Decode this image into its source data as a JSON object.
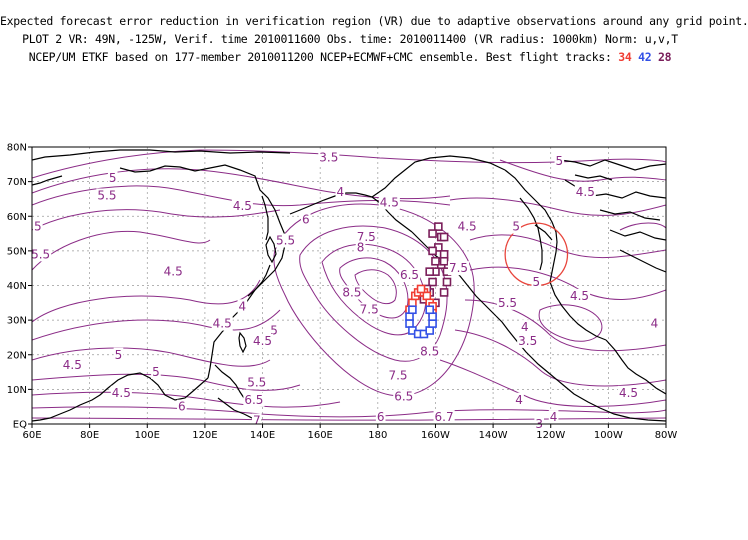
{
  "title": {
    "line1": "Expected forecast error reduction in verification region (VR) due to adaptive observations around any grid point.",
    "line2": "PLOT 2 VR: 49N, -125W, Verif. time 2010011600 Obs. time: 2010011400 (VR radius: 1000km) Norm: u,v,T",
    "line3_prefix": "NCEP/UM ETKF based on 177-member 2010011200 NCEP+ECMWF+CMC ensemble. Best flight tracks:",
    "track1": "34",
    "track2": "42",
    "track3": "28"
  },
  "colors": {
    "contour": "#8b2c87",
    "coast": "#000000",
    "vr_circle": "#e8453c",
    "track_red": "#f03c32",
    "track_blue": "#3250e6",
    "track_purple": "#7a1e5a"
  },
  "axes": {
    "lat_ticks": [
      "80N",
      "70N",
      "60N",
      "50N",
      "40N",
      "30N",
      "20N",
      "10N",
      "EQ"
    ],
    "lon_ticks": [
      "60E",
      "80E",
      "100E",
      "120E",
      "140E",
      "160E",
      "180",
      "160W",
      "140W",
      "120W",
      "100W",
      "80W"
    ]
  },
  "contour_labels": [
    {
      "text": "3.5",
      "lon": 163,
      "lat": 77
    },
    {
      "text": "5.5",
      "lon": 86,
      "lat": 66
    },
    {
      "text": "5",
      "lon": 88,
      "lat": 71
    },
    {
      "text": "4",
      "lon": 167,
      "lat": 67
    },
    {
      "text": "4.5",
      "lon": 184,
      "lat": 64
    },
    {
      "text": "4.5",
      "lon": 133,
      "lat": 63
    },
    {
      "text": "6",
      "lon": 155,
      "lat": 59
    },
    {
      "text": "5.5",
      "lon": 148,
      "lat": 53
    },
    {
      "text": "7.5",
      "lon": 176,
      "lat": 54
    },
    {
      "text": "8",
      "lon": 174,
      "lat": 51
    },
    {
      "text": "4.5",
      "lon": 211,
      "lat": 57
    },
    {
      "text": "5",
      "lon": 228,
      "lat": 57
    },
    {
      "text": "4.5",
      "lon": 252,
      "lat": 67
    },
    {
      "text": "5",
      "lon": 243,
      "lat": 76
    },
    {
      "text": "5",
      "lon": 62,
      "lat": 57
    },
    {
      "text": "5.5",
      "lon": 63,
      "lat": 49
    },
    {
      "text": "4.5",
      "lon": 109,
      "lat": 44
    },
    {
      "text": "8.5",
      "lon": 171,
      "lat": 38
    },
    {
      "text": "6.5",
      "lon": 191,
      "lat": 43
    },
    {
      "text": "7.5",
      "lon": 208,
      "lat": 45
    },
    {
      "text": "4",
      "lon": 133,
      "lat": 34
    },
    {
      "text": "4.5",
      "lon": 126,
      "lat": 29
    },
    {
      "text": "5",
      "lon": 144,
      "lat": 27
    },
    {
      "text": "4.5",
      "lon": 140,
      "lat": 24
    },
    {
      "text": "7.5",
      "lon": 177,
      "lat": 33
    },
    {
      "text": "5",
      "lon": 235,
      "lat": 41
    },
    {
      "text": "4.5",
      "lon": 250,
      "lat": 37
    },
    {
      "text": "5.5",
      "lon": 225,
      "lat": 35
    },
    {
      "text": "4",
      "lon": 231,
      "lat": 28
    },
    {
      "text": "3.5",
      "lon": 232,
      "lat": 24
    },
    {
      "text": "4",
      "lon": 276,
      "lat": 29
    },
    {
      "text": "5",
      "lon": 90,
      "lat": 20
    },
    {
      "text": "4.5",
      "lon": 74,
      "lat": 17
    },
    {
      "text": "5",
      "lon": 103,
      "lat": 15
    },
    {
      "text": "4.5",
      "lon": 91,
      "lat": 9
    },
    {
      "text": "6",
      "lon": 112,
      "lat": 5
    },
    {
      "text": "5.5",
      "lon": 138,
      "lat": 12
    },
    {
      "text": "6.5",
      "lon": 137,
      "lat": 7
    },
    {
      "text": "7",
      "lon": 138,
      "lat": 1
    },
    {
      "text": "8.5",
      "lon": 198,
      "lat": 21
    },
    {
      "text": "7.5",
      "lon": 187,
      "lat": 14
    },
    {
      "text": "6.5",
      "lon": 189,
      "lat": 8
    },
    {
      "text": "6",
      "lon": 181,
      "lat": 2
    },
    {
      "text": "6.7",
      "lon": 203,
      "lat": 2
    },
    {
      "text": "4",
      "lon": 229,
      "lat": 7
    },
    {
      "text": "4.5",
      "lon": 267,
      "lat": 9
    },
    {
      "text": "3",
      "lon": 236,
      "lat": 0
    },
    {
      "text": "4",
      "lon": 241,
      "lat": 2
    }
  ],
  "vr_circle": {
    "lon": 235,
    "lat": 49,
    "radius_km": 1000
  },
  "tracks": {
    "purple": [
      {
        "lon": 201,
        "lat": 57
      },
      {
        "lon": 202,
        "lat": 54
      },
      {
        "lon": 201,
        "lat": 51
      },
      {
        "lon": 203,
        "lat": 49
      },
      {
        "lon": 202,
        "lat": 46
      },
      {
        "lon": 200,
        "lat": 44
      },
      {
        "lon": 199,
        "lat": 41
      },
      {
        "lon": 198,
        "lat": 38
      },
      {
        "lon": 196,
        "lat": 36
      },
      {
        "lon": 197,
        "lat": 39
      },
      {
        "lon": 200,
        "lat": 35
      },
      {
        "lon": 203,
        "lat": 38
      },
      {
        "lon": 204,
        "lat": 41
      },
      {
        "lon": 204,
        "lat": 44
      },
      {
        "lon": 203,
        "lat": 47
      },
      {
        "lon": 203,
        "lat": 54
      },
      {
        "lon": 199,
        "lat": 55
      },
      {
        "lon": 199,
        "lat": 50
      },
      {
        "lon": 200,
        "lat": 47
      },
      {
        "lon": 198,
        "lat": 44
      }
    ],
    "red": [
      {
        "lon": 192,
        "lat": 35
      },
      {
        "lon": 193,
        "lat": 37
      },
      {
        "lon": 194,
        "lat": 38
      },
      {
        "lon": 196,
        "lat": 38
      },
      {
        "lon": 197,
        "lat": 37
      },
      {
        "lon": 198,
        "lat": 35
      },
      {
        "lon": 199,
        "lat": 34
      },
      {
        "lon": 199,
        "lat": 32
      },
      {
        "lon": 191,
        "lat": 33
      },
      {
        "lon": 195,
        "lat": 39
      }
    ],
    "blue": [
      {
        "lon": 191,
        "lat": 31
      },
      {
        "lon": 191,
        "lat": 29
      },
      {
        "lon": 192,
        "lat": 27
      },
      {
        "lon": 194,
        "lat": 26
      },
      {
        "lon": 196,
        "lat": 26
      },
      {
        "lon": 198,
        "lat": 27
      },
      {
        "lon": 199,
        "lat": 29
      },
      {
        "lon": 199,
        "lat": 31
      },
      {
        "lon": 192,
        "lat": 33
      },
      {
        "lon": 198,
        "lat": 33
      }
    ]
  },
  "legend_colors": [
    "red",
    "blue",
    "purple"
  ]
}
